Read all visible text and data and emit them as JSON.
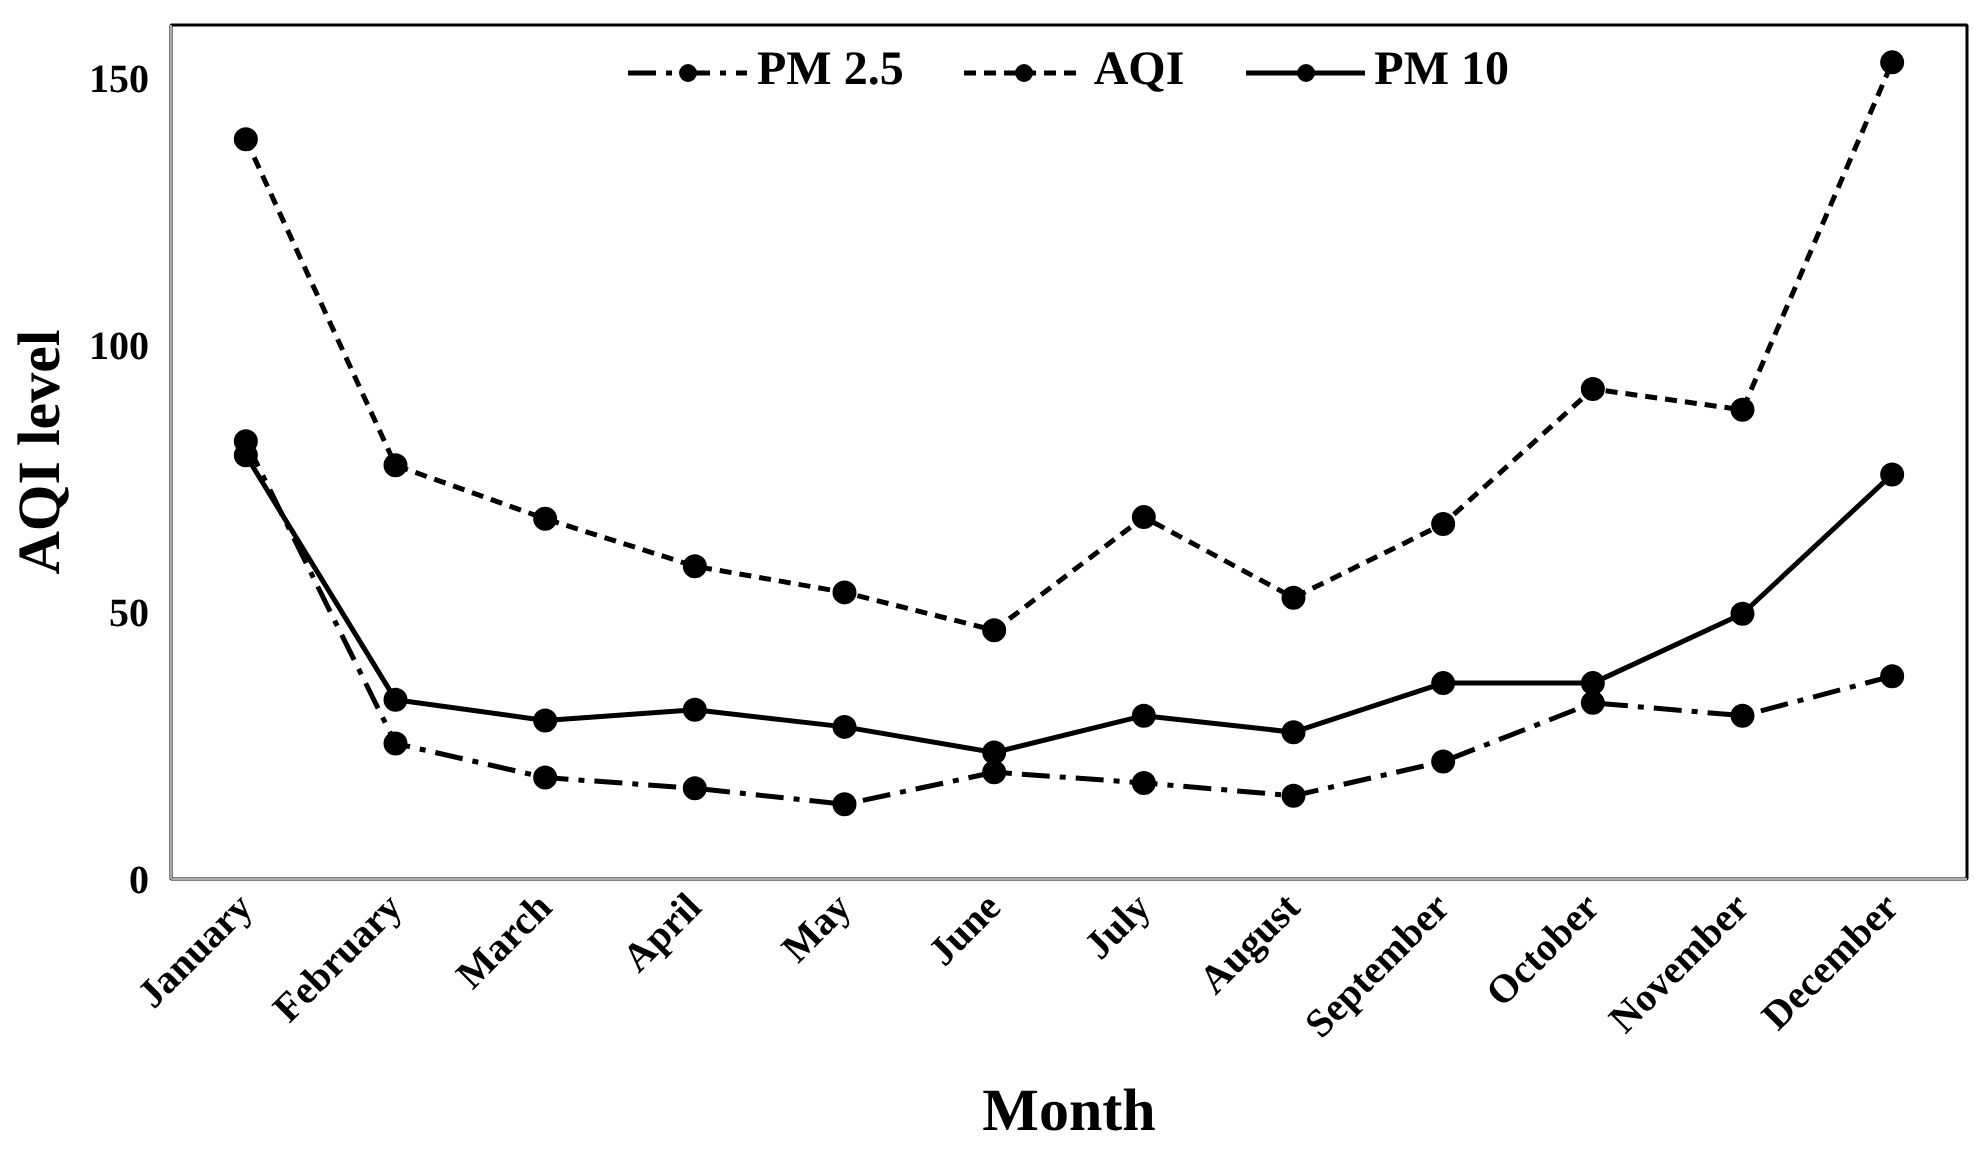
{
  "chart_data": {
    "type": "line",
    "xlabel": "Month",
    "ylabel": "AQI level",
    "categories": [
      "January",
      "February",
      "March",
      "April",
      "May",
      "June",
      "July",
      "August",
      "September",
      "October",
      "November",
      "December"
    ],
    "series": [
      {
        "name": "PM 2.5",
        "color": "#000000",
        "line_style": "dashdot",
        "values": [
          82,
          25.4,
          19,
          17,
          14,
          20,
          18,
          15.6,
          22,
          33,
          30.6,
          38
        ]
      },
      {
        "name": "AQI",
        "color": "#000000",
        "line_style": "dashed",
        "values": [
          138.6,
          77.5,
          67.5,
          58.6,
          53.7,
          46.6,
          67.8,
          52.7,
          66.5,
          91.8,
          87.9,
          153
        ]
      },
      {
        "name": "PM 10",
        "color": "#000000",
        "line_style": "solid",
        "values": [
          79.4,
          33.6,
          29.7,
          31.7,
          28.5,
          23.7,
          30.6,
          27.5,
          36.7,
          36.7,
          49.7,
          75.8
        ]
      }
    ],
    "ylim": [
      0,
      160
    ],
    "yticks": [
      0,
      50,
      100,
      150
    ],
    "grid": false,
    "legend": "top",
    "marker": "circle"
  }
}
